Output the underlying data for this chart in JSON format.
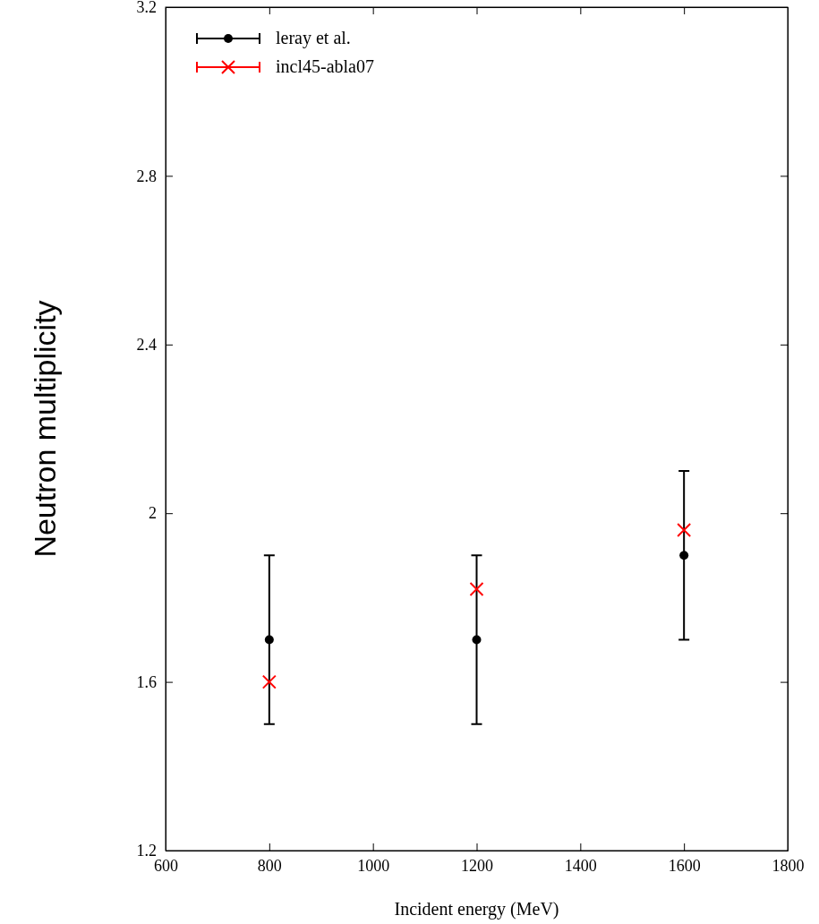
{
  "chart_data": {
    "type": "scatter",
    "xlabel": "Incident energy (MeV)",
    "ylabel": "Neutron multiplicity",
    "x": [
      800,
      1200,
      1600
    ],
    "series": [
      {
        "name": "leray et al.",
        "color": "#000000",
        "marker": "circle",
        "values": [
          1.7,
          1.7,
          1.9
        ],
        "errors": [
          0.2,
          0.2,
          0.2
        ]
      },
      {
        "name": "incl45-abla07",
        "color": "#ff0000",
        "marker": "cross",
        "values": [
          1.6,
          1.82,
          1.96
        ]
      }
    ],
    "xlim": [
      600,
      1800
    ],
    "xticks": [
      600,
      800,
      1000,
      1200,
      1400,
      1600,
      1800
    ],
    "ylim": [
      1.2,
      3.2
    ],
    "yticks": [
      {
        "value": 1.2,
        "label": "1.2"
      },
      {
        "value": 1.6,
        "label": "1.6"
      },
      {
        "value": 2,
        "label": "2"
      },
      {
        "value": 2.4,
        "label": "2.4"
      },
      {
        "value": 2.8,
        "label": "2.8"
      },
      {
        "value": 3.2,
        "label": "3.2"
      }
    ],
    "legend": "top left",
    "grid": false
  }
}
